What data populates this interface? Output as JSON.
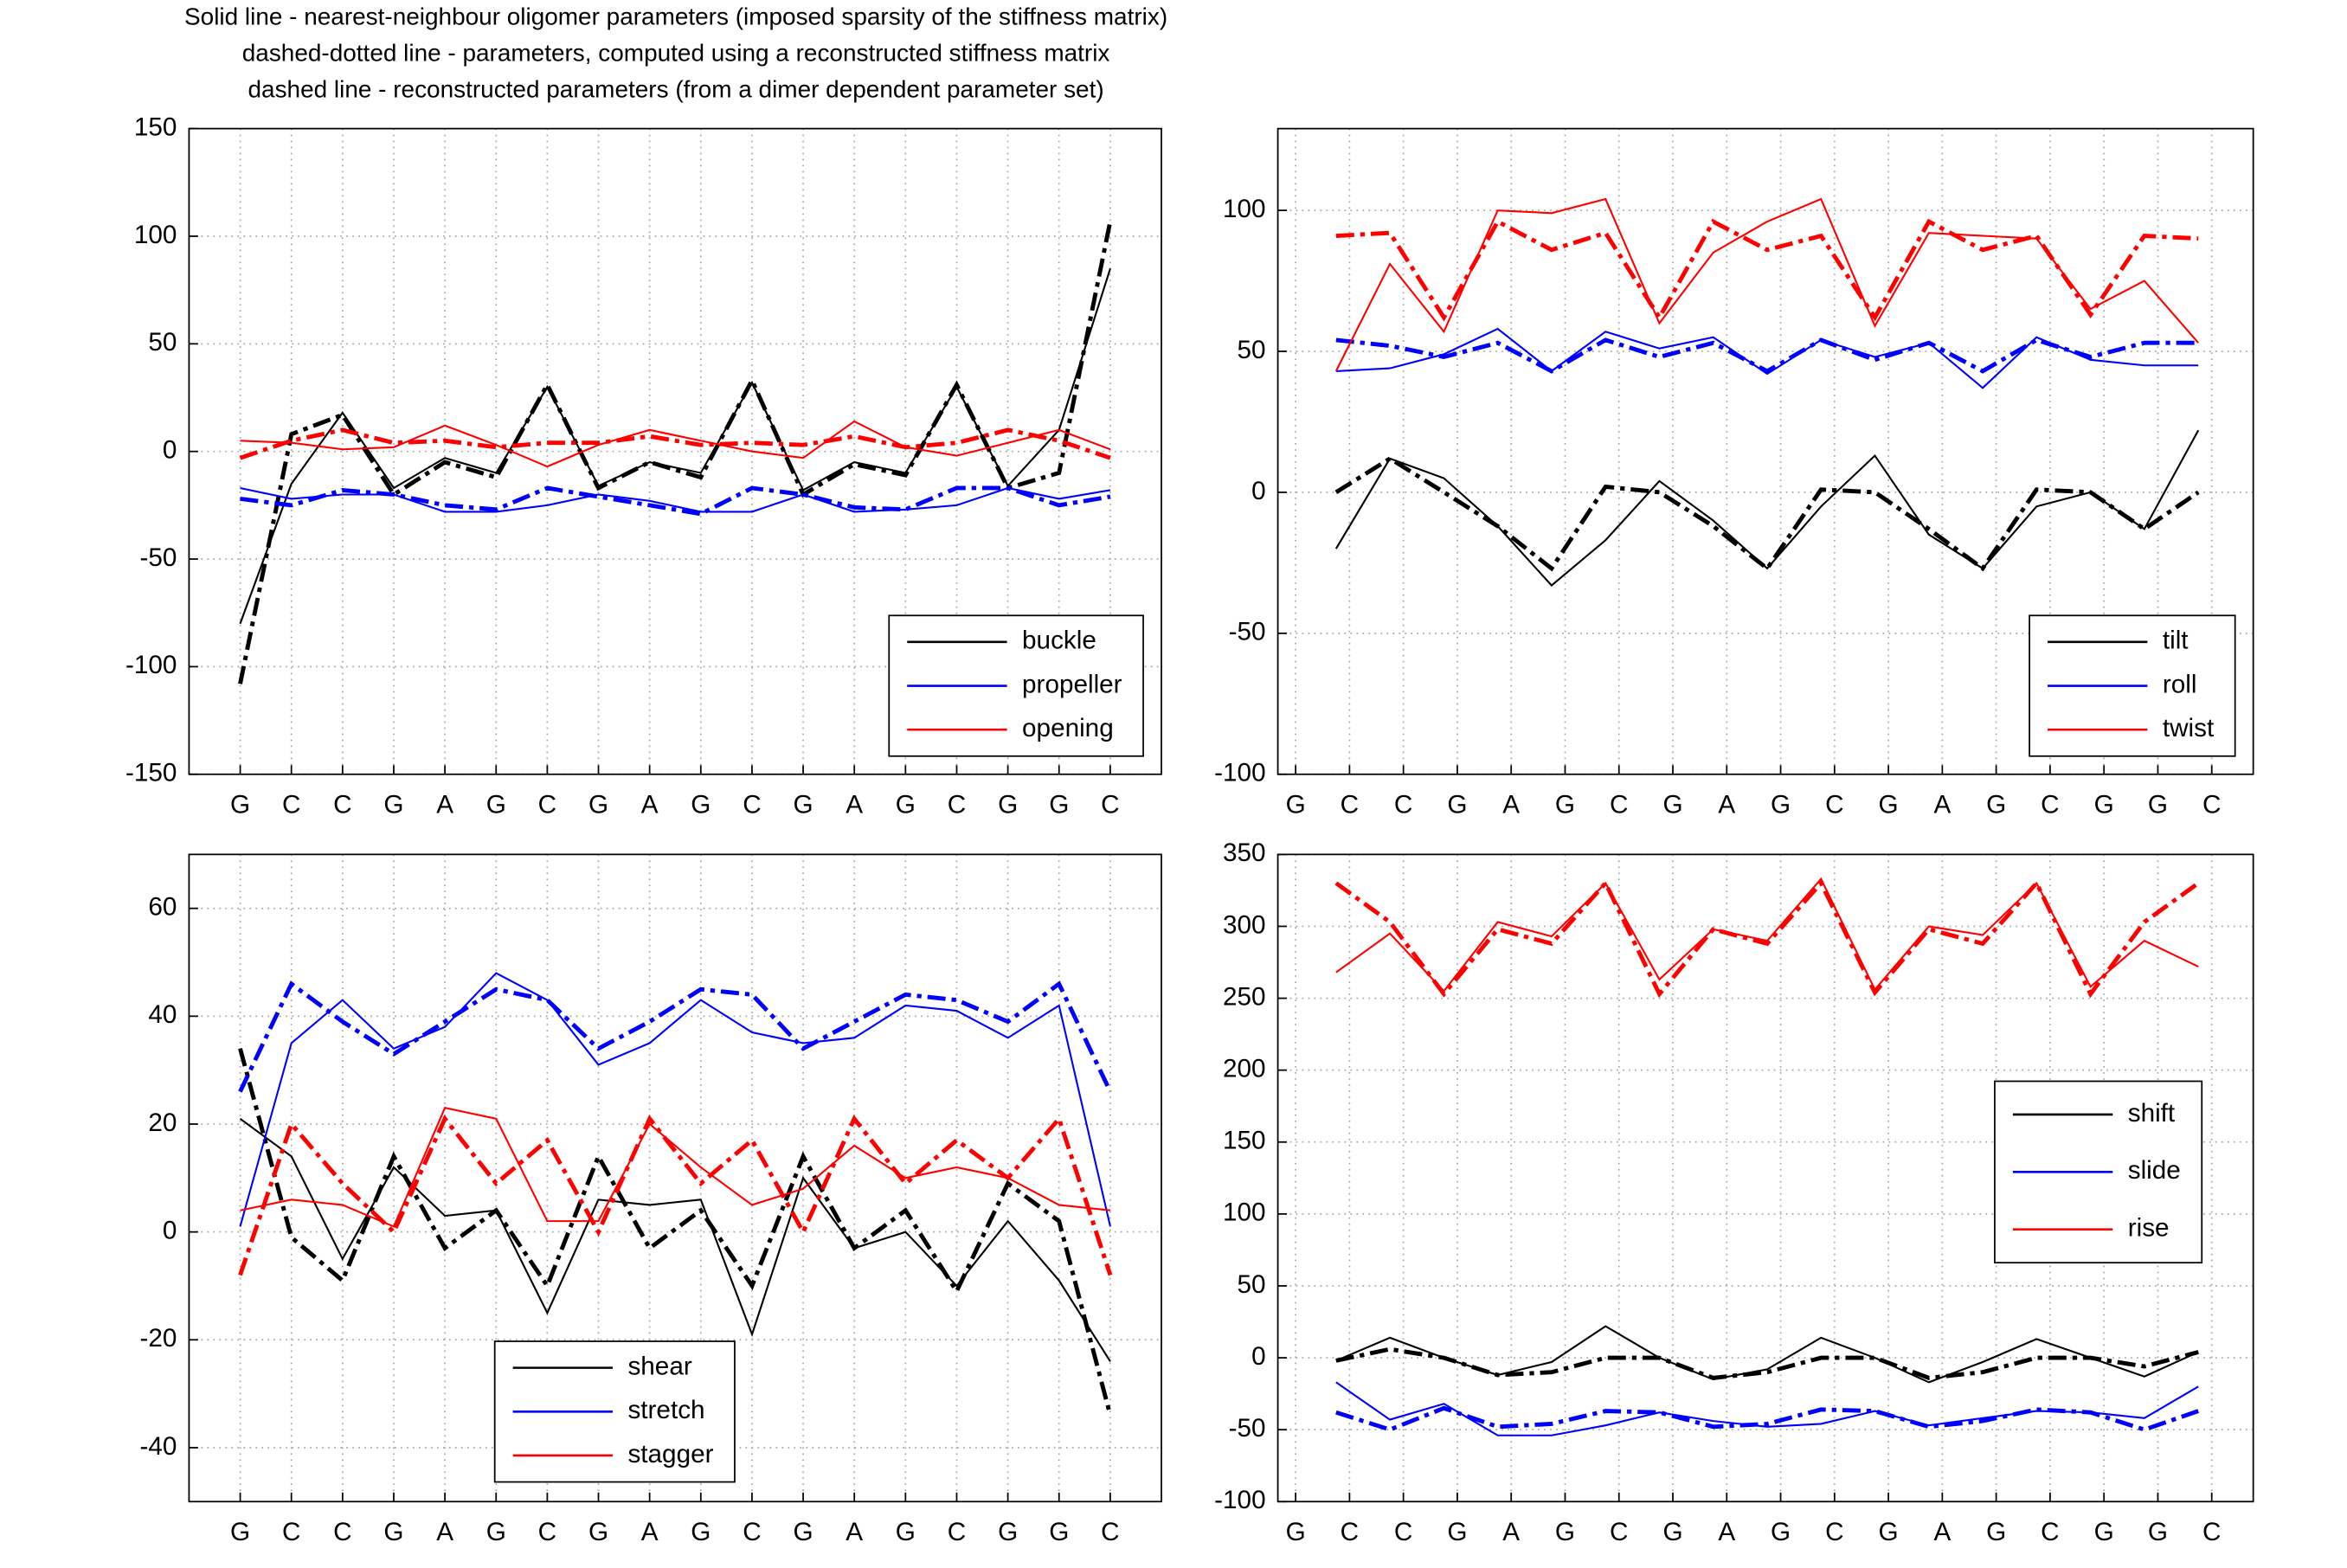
{
  "title": [
    "Solid line - nearest-neighbour oligomer parameters (imposed sparsity of the stiffness matrix)",
    "dashed-dotted line - parameters, computed using a reconstructed stiffness matrix",
    "dashed line - reconstructed parameters (from a dimer dependent parameter set)"
  ],
  "chart_data": [
    {
      "type": "line",
      "categories": [
        "G",
        "C",
        "C",
        "G",
        "A",
        "G",
        "C",
        "G",
        "A",
        "G",
        "C",
        "G",
        "A",
        "G",
        "C",
        "G",
        "G",
        "C"
      ],
      "xlim": [
        0,
        19
      ],
      "ylim": [
        -150,
        150
      ],
      "yticks": [
        -150,
        -100,
        -50,
        0,
        50,
        100,
        150
      ],
      "grid": true,
      "legend": "lower right",
      "series": [
        {
          "name": "buckle",
          "color": "#000000",
          "values": [
            -80,
            -15,
            18,
            -17,
            -3,
            -10,
            30,
            -16,
            -5,
            -10,
            32,
            -18,
            -5,
            -10,
            30,
            -16,
            10,
            85
          ],
          "dashdot_values": [
            -108,
            8,
            17,
            -20,
            -5,
            -12,
            31,
            -17,
            -5,
            -12,
            33,
            -20,
            -6,
            -11,
            31,
            -17,
            -10,
            107
          ]
        },
        {
          "name": "propeller",
          "color": "#0000ff",
          "values": [
            -17,
            -22,
            -20,
            -20,
            -28,
            -28,
            -25,
            -20,
            -23,
            -28,
            -28,
            -20,
            -28,
            -27,
            -25,
            -17,
            -22,
            -18
          ],
          "dashdot_values": [
            -22,
            -25,
            -18,
            -20,
            -25,
            -27,
            -17,
            -21,
            -25,
            -29,
            -17,
            -20,
            -26,
            -27,
            -17,
            -17,
            -25,
            -21
          ]
        },
        {
          "name": "opening",
          "color": "#ff0000",
          "values": [
            5,
            4,
            1,
            2,
            12,
            3,
            -7,
            3,
            10,
            5,
            0,
            -3,
            14,
            2,
            -2,
            4,
            10,
            1
          ],
          "dashdot_values": [
            -3,
            5,
            10,
            4,
            5,
            2,
            4,
            4,
            7,
            3,
            4,
            3,
            7,
            2,
            4,
            10,
            5,
            -3
          ]
        }
      ]
    },
    {
      "type": "line",
      "categories": [
        "G",
        "C",
        "C",
        "G",
        "A",
        "G",
        "C",
        "G",
        "A",
        "G",
        "C",
        "G",
        "A",
        "G",
        "C",
        "G",
        "G",
        "C"
      ],
      "x": [
        1.75,
        2.75,
        3.75,
        4.75,
        5.75,
        6.75,
        7.75,
        8.75,
        9.75,
        10.75,
        11.75,
        12.75,
        13.75,
        14.75,
        15.75,
        16.75,
        17.75
      ],
      "xlim": [
        0.67,
        18.77
      ],
      "ylim": [
        -100,
        129
      ],
      "yticks": [
        -100,
        -50,
        0,
        50,
        100
      ],
      "grid": true,
      "legend": "lower right",
      "series": [
        {
          "name": "tilt",
          "color": "#000000",
          "values": [
            -20,
            12,
            5,
            -12,
            -33,
            -17,
            4,
            -10,
            -27,
            -5,
            13,
            -15,
            -27,
            -5,
            0,
            -13,
            22
          ],
          "dashdot_values": [
            0,
            12,
            0,
            -12,
            -27,
            2,
            0,
            -12,
            -27,
            1,
            0,
            -13,
            -27,
            1,
            0,
            -13,
            0
          ]
        },
        {
          "name": "roll",
          "color": "#0000ff",
          "values": [
            43,
            44,
            49,
            58,
            43,
            57,
            51,
            55,
            42,
            54,
            48,
            53,
            37,
            55,
            47,
            45,
            45
          ],
          "dashdot_values": [
            54,
            52,
            48,
            53,
            43,
            54,
            48,
            53,
            43,
            54,
            47,
            53,
            43,
            54,
            48,
            53,
            53
          ]
        },
        {
          "name": "twist",
          "color": "#ff0000",
          "values": [
            43,
            81,
            57,
            100,
            99,
            104,
            60,
            85,
            96,
            104,
            59,
            92,
            91,
            90,
            65,
            75,
            53
          ],
          "dashdot_values": [
            91,
            92,
            62,
            96,
            86,
            92,
            62,
            96,
            86,
            91,
            62,
            96,
            86,
            91,
            63,
            91,
            90
          ]
        }
      ]
    },
    {
      "type": "line",
      "categories": [
        "G",
        "C",
        "C",
        "G",
        "A",
        "G",
        "C",
        "G",
        "A",
        "G",
        "C",
        "G",
        "A",
        "G",
        "C",
        "G",
        "G",
        "C"
      ],
      "xlim": [
        0,
        19
      ],
      "ylim": [
        -50,
        70
      ],
      "yticks": [
        -40,
        -20,
        0,
        20,
        40,
        60
      ],
      "grid": true,
      "legend": "lower center",
      "series": [
        {
          "name": "shear",
          "color": "#000000",
          "values": [
            21,
            14,
            -5,
            12,
            3,
            4,
            -15,
            6,
            5,
            6,
            -19,
            10,
            -3,
            0,
            -10,
            2,
            -9,
            -24
          ],
          "dashdot_values": [
            34,
            -1,
            -9,
            14,
            -3,
            4,
            -10,
            14,
            -3,
            4,
            -10,
            14,
            -3,
            4,
            -11,
            9,
            2,
            -34
          ]
        },
        {
          "name": "stretch",
          "color": "#0000ff",
          "values": [
            1,
            35,
            43,
            34,
            38,
            48,
            43,
            31,
            35,
            43,
            37,
            35,
            36,
            42,
            41,
            36,
            42,
            1
          ],
          "dashdot_values": [
            26,
            46,
            39,
            33,
            39,
            45,
            43,
            34,
            39,
            45,
            44,
            34,
            39,
            44,
            43,
            39,
            46,
            26
          ]
        },
        {
          "name": "stagger",
          "color": "#ff0000",
          "values": [
            4,
            6,
            5,
            1,
            23,
            21,
            2,
            2,
            20,
            12,
            5,
            8,
            16,
            10,
            12,
            10,
            5,
            4
          ],
          "dashdot_values": [
            -8,
            20,
            9,
            0,
            21,
            9,
            17,
            0,
            21,
            9,
            17,
            0,
            21,
            9,
            17,
            10,
            21,
            -8
          ]
        }
      ]
    },
    {
      "type": "line",
      "categories": [
        "G",
        "C",
        "C",
        "G",
        "A",
        "G",
        "C",
        "G",
        "A",
        "G",
        "C",
        "G",
        "A",
        "G",
        "C",
        "G",
        "G",
        "C"
      ],
      "x": [
        1.75,
        2.75,
        3.75,
        4.75,
        5.75,
        6.75,
        7.75,
        8.75,
        9.75,
        10.75,
        11.75,
        12.75,
        13.75,
        14.75,
        15.75,
        16.75,
        17.75
      ],
      "xlim": [
        0.67,
        18.77
      ],
      "ylim": [
        -100,
        350
      ],
      "yticks": [
        -100,
        -50,
        0,
        50,
        100,
        150,
        200,
        250,
        300,
        350
      ],
      "grid": true,
      "legend": "center right",
      "series": [
        {
          "name": "shift",
          "color": "#000000",
          "values": [
            -2,
            14,
            0,
            -12,
            -3,
            22,
            0,
            -15,
            -8,
            14,
            0,
            -17,
            -3,
            13,
            0,
            -13,
            4
          ],
          "dashdot_values": [
            -2,
            6,
            0,
            -12,
            -10,
            0,
            0,
            -14,
            -10,
            0,
            0,
            -14,
            -10,
            0,
            0,
            -6,
            4
          ]
        },
        {
          "name": "slide",
          "color": "#0000ff",
          "values": [
            -17,
            -43,
            -32,
            -54,
            -54,
            -47,
            -38,
            -44,
            -48,
            -46,
            -37,
            -47,
            -42,
            -37,
            -38,
            -42,
            -20
          ],
          "dashdot_values": [
            -38,
            -50,
            -35,
            -48,
            -46,
            -37,
            -38,
            -48,
            -46,
            -36,
            -37,
            -48,
            -44,
            -36,
            -38,
            -50,
            -37
          ]
        },
        {
          "name": "rise",
          "color": "#ff0000",
          "values": [
            268,
            295,
            255,
            303,
            293,
            330,
            263,
            298,
            290,
            333,
            256,
            300,
            294,
            330,
            258,
            290,
            272
          ],
          "dashdot_values": [
            330,
            303,
            253,
            298,
            288,
            330,
            253,
            298,
            288,
            330,
            254,
            298,
            288,
            330,
            253,
            303,
            330
          ]
        }
      ]
    }
  ]
}
